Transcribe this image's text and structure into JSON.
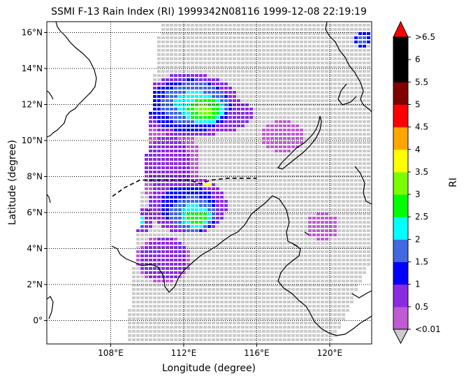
{
  "chart_data": {
    "type": "heatmap",
    "title": "SSMI F-13 Rain Index (RI) 1999342N08116 1999-12-08 22:19:19",
    "xlabel": "Longitude (degree)",
    "ylabel": "Latitude (degree)",
    "colorbar_label": "RI",
    "xlim": [
      104.5,
      122.3
    ],
    "ylim": [
      -1.3,
      16.6
    ],
    "x_ticks": [
      108,
      112,
      116,
      120
    ],
    "x_tick_labels": [
      "108°E",
      "112°E",
      "116°E",
      "120°E"
    ],
    "y_ticks": [
      0,
      2,
      4,
      6,
      8,
      10,
      12,
      14,
      16
    ],
    "y_tick_labels": [
      "0°",
      "2°N",
      "4°N",
      "6°N",
      "8°N",
      "10°N",
      "12°N",
      "14°N",
      "16°N"
    ],
    "grid": "dotted",
    "colorbar": {
      "tick_labels": [
        "<0.01",
        "0.5",
        "1",
        "1.5",
        "2",
        "2.5",
        "3",
        "3.5",
        "4",
        "4.5",
        "5",
        "5.5",
        "6",
        ">6.5"
      ],
      "colors": [
        "#bf5bd3",
        "#8a2be2",
        "#0000ff",
        "#4169e1",
        "#00ffff",
        "#00ff00",
        "#7cfc00",
        "#ffff00",
        "#ffa500",
        "#ff0000",
        "#800000",
        "#000000",
        "#000000"
      ],
      "over_color": "#ff0000",
      "under_color": "#cccccc"
    },
    "track": {
      "style": "dashed",
      "lons": [
        108.1,
        108.8,
        109.6,
        110.6,
        111.5,
        112.3,
        112.9,
        113.5,
        114.4,
        115.3,
        116.0
      ],
      "lats": [
        6.9,
        7.4,
        7.8,
        7.8,
        7.8,
        7.8,
        7.6,
        7.8,
        7.9,
        7.9,
        7.9
      ]
    },
    "swath": {
      "corners": [
        [
          110.7,
          16.6
        ],
        [
          122.3,
          16.6
        ],
        [
          122.3,
          3.4
        ],
        [
          120.1,
          -1.3
        ],
        [
          108.8,
          -1.3
        ]
      ]
    },
    "rain_cells": [
      {
        "lon": 113.0,
        "lat": 11.8,
        "rx": 1.1,
        "ry": 0.8,
        "ri": 3.2
      },
      {
        "lon": 112.5,
        "lat": 12.1,
        "rx": 1.8,
        "ry": 1.2,
        "ri": 2.3
      },
      {
        "lon": 112.2,
        "lat": 12.0,
        "rx": 2.8,
        "ry": 1.8,
        "ri": 1.3
      },
      {
        "lon": 114.3,
        "lat": 11.5,
        "rx": 1.4,
        "ry": 0.9,
        "ri": 1.0
      },
      {
        "lon": 112.6,
        "lat": 5.8,
        "rx": 0.8,
        "ry": 0.6,
        "ri": 3.0
      },
      {
        "lon": 112.4,
        "lat": 6.0,
        "rx": 1.3,
        "ry": 1.0,
        "ri": 2.2
      },
      {
        "lon": 112.1,
        "lat": 6.5,
        "rx": 2.2,
        "ry": 1.6,
        "ri": 1.2
      },
      {
        "lon": 109.5,
        "lat": 5.6,
        "rx": 0.35,
        "ry": 0.35,
        "ri": 2.4
      },
      {
        "lon": 109.6,
        "lat": 5.6,
        "rx": 0.7,
        "ry": 0.7,
        "ri": 1.0
      },
      {
        "lon": 111.0,
        "lat": 8.8,
        "rx": 1.8,
        "ry": 2.2,
        "ri": 0.6
      },
      {
        "lon": 110.8,
        "lat": 3.5,
        "rx": 1.5,
        "ry": 1.3,
        "ri": 0.7
      },
      {
        "lon": 117.3,
        "lat": 10.3,
        "rx": 1.2,
        "ry": 0.9,
        "ri": 0.4
      },
      {
        "lon": 119.5,
        "lat": 5.3,
        "rx": 0.9,
        "ry": 0.8,
        "ri": 0.5
      },
      {
        "lon": 121.7,
        "lat": 15.7,
        "rx": 0.45,
        "ry": 0.5,
        "ri": 1.6
      },
      {
        "lon": 113.2,
        "lat": 7.6,
        "rx": 0.15,
        "ry": 0.15,
        "ri": 4.8
      }
    ]
  }
}
